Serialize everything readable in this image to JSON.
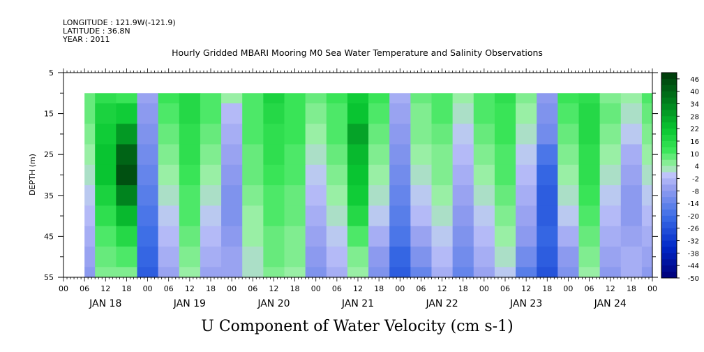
{
  "header": {
    "longitude": "LONGITUDE : 121.9W(-121.9)",
    "latitude": "LATITUDE : 36.8N",
    "year": "YEAR : 2011"
  },
  "chart_data": {
    "type": "heatmap",
    "title": "Hourly Gridded MBARI Mooring M0 Sea Water Temperature and Salinity Observations",
    "xlabel": "U Component of Water Velocity (cm s-1)",
    "ylabel": "DEPTH (m)",
    "x_hour_ticks": [
      "00",
      "06",
      "12",
      "18",
      "00",
      "06",
      "12",
      "18",
      "00",
      "06",
      "12",
      "18",
      "00",
      "06",
      "12",
      "18",
      "00",
      "06",
      "12",
      "18",
      "00",
      "06",
      "12",
      "18",
      "00",
      "06",
      "12",
      "18",
      "00"
    ],
    "x_day_labels": [
      "JAN 18",
      "JAN 19",
      "JAN 20",
      "JAN 21",
      "JAN 22",
      "JAN 23",
      "JAN 24"
    ],
    "y_ticks": [
      5,
      15,
      25,
      35,
      45,
      55
    ],
    "ylim": [
      55,
      5
    ],
    "y_inverted": true,
    "data_depth_range": [
      10,
      55
    ],
    "data_time_range_hours": [
      6,
      168
    ],
    "colorbar": {
      "labels": [
        "46",
        "40",
        "34",
        "28",
        "22",
        "16",
        "10",
        "4",
        "-2",
        "-8",
        "-14",
        "-20",
        "-26",
        "-32",
        "-38",
        "-44",
        "-50"
      ],
      "range": [
        -50,
        49
      ],
      "step": 3
    },
    "depth_rows": [
      10,
      15,
      20,
      25,
      30,
      35,
      40,
      45,
      50,
      55
    ],
    "time_hours": [
      6,
      12,
      18,
      24,
      30,
      36,
      42,
      48,
      54,
      60,
      66,
      72,
      78,
      84,
      90,
      96,
      102,
      108,
      114,
      120,
      126,
      132,
      138,
      144,
      150,
      156,
      162,
      168
    ],
    "values": [
      [
        8,
        14,
        12,
        -6,
        12,
        16,
        10,
        4,
        10,
        18,
        12,
        8,
        12,
        20,
        12,
        -4,
        8,
        10,
        4,
        10,
        14,
        6,
        -8,
        12,
        14,
        6,
        4,
        10
      ],
      [
        8,
        18,
        20,
        -8,
        10,
        16,
        10,
        -2,
        10,
        16,
        12,
        6,
        10,
        22,
        10,
        -6,
        6,
        10,
        2,
        10,
        12,
        4,
        -10,
        10,
        16,
        8,
        2,
        8
      ],
      [
        6,
        20,
        30,
        -10,
        8,
        14,
        8,
        -4,
        10,
        14,
        12,
        4,
        10,
        28,
        8,
        -8,
        6,
        8,
        0,
        8,
        12,
        2,
        -12,
        8,
        16,
        6,
        0,
        6
      ],
      [
        4,
        22,
        40,
        -12,
        6,
        14,
        6,
        -6,
        8,
        14,
        10,
        2,
        8,
        24,
        6,
        -10,
        4,
        6,
        -2,
        6,
        10,
        0,
        -18,
        6,
        14,
        4,
        -4,
        4
      ],
      [
        2,
        22,
        44,
        -14,
        4,
        12,
        4,
        -8,
        8,
        12,
        10,
        0,
        6,
        22,
        4,
        -12,
        2,
        6,
        -4,
        4,
        10,
        -2,
        -22,
        4,
        14,
        2,
        -6,
        2
      ],
      [
        0,
        18,
        34,
        -16,
        2,
        10,
        2,
        -10,
        6,
        10,
        8,
        -2,
        4,
        20,
        2,
        -14,
        0,
        4,
        -6,
        2,
        8,
        -4,
        -24,
        2,
        12,
        0,
        -8,
        0
      ],
      [
        -2,
        14,
        24,
        -18,
        0,
        10,
        0,
        -10,
        4,
        10,
        8,
        -4,
        2,
        16,
        0,
        -16,
        -2,
        2,
        -8,
        0,
        6,
        -6,
        -24,
        0,
        10,
        -2,
        -8,
        -2
      ],
      [
        -4,
        10,
        16,
        -20,
        -2,
        8,
        -2,
        -8,
        4,
        8,
        6,
        -6,
        0,
        10,
        -4,
        -18,
        -6,
        0,
        -10,
        -2,
        4,
        -8,
        -22,
        -4,
        8,
        -4,
        -6,
        -4
      ],
      [
        -6,
        8,
        10,
        -22,
        -4,
        6,
        -4,
        -6,
        2,
        8,
        6,
        -8,
        -2,
        6,
        -8,
        -22,
        -10,
        -2,
        -12,
        -4,
        2,
        -12,
        -24,
        -8,
        6,
        -6,
        -4,
        -6
      ],
      [
        -8,
        6,
        6,
        -24,
        -6,
        4,
        -6,
        -6,
        2,
        6,
        4,
        -10,
        -4,
        4,
        -10,
        -24,
        -14,
        -4,
        -14,
        -6,
        0,
        -16,
        -26,
        -10,
        4,
        -8,
        -4,
        -8
      ]
    ]
  }
}
